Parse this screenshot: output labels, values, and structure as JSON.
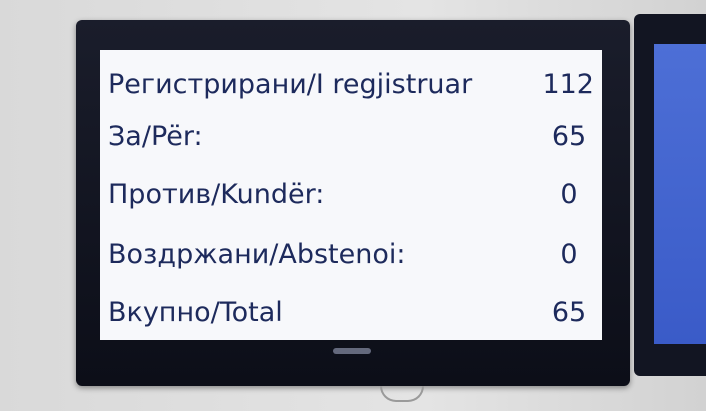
{
  "display": {
    "rows": [
      {
        "label": "Регистрирани/I regjistruar",
        "value": "112"
      },
      {
        "label": "За/Për:",
        "value": "65"
      },
      {
        "label": "Против/Kundër:",
        "value": "0"
      },
      {
        "label": "Воздржани/Abstenoi:",
        "value": "0"
      },
      {
        "label": "Вкупно/Total",
        "value": "65"
      }
    ]
  },
  "colors": {
    "text": "#1d2a5c",
    "screen": "#f7f8fb",
    "bezel": "#12141f",
    "second_screen": "#4363d0"
  }
}
